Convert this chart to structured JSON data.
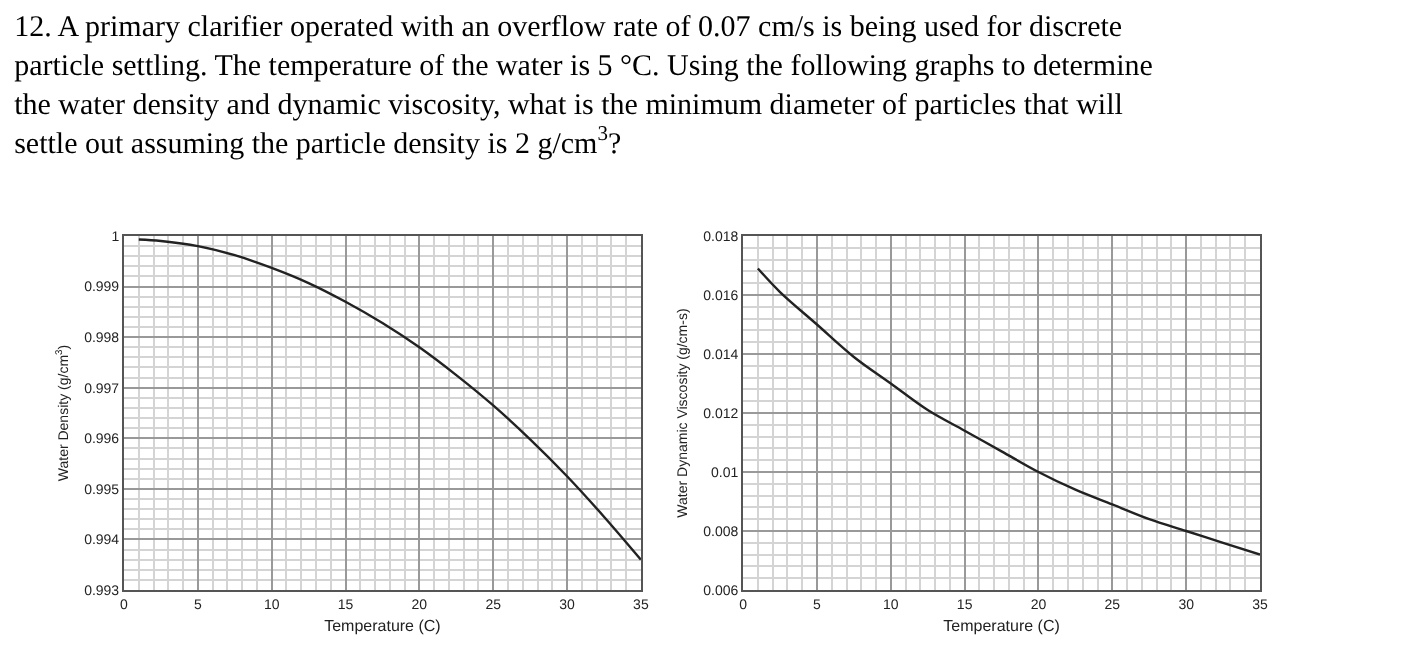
{
  "chart_data": [
    {
      "type": "line",
      "title": "12. A primary clarifier operated with an overflow rate of 0.07 cm/s is being used for discrete particle settling. The temperature of the water is 5 °C. Using the following graphs to determine the water density and dynamic viscosity, what is the minimum diameter of particles that will settle out assuming the particle density is 2 g/cm$^{3}$?",
      "xlabel": "Temperature (C)",
      "ylabel": "Water Density (g/cm$^{3}$)",
      "x": [
        1,
        2.5,
        5,
        7.5,
        10,
        12.5,
        15,
        17.5,
        20,
        22.5,
        25,
        27.5,
        30,
        32.5,
        35
      ],
      "series": [
        {
          "color": "#222222",
          "values": [
            0.99993,
            0.9999,
            0.9998,
            0.99962,
            0.99937,
            0.99907,
            0.9987,
            0.99828,
            0.9978,
            0.99725,
            0.99665,
            0.99598,
            0.99525,
            0.99445,
            0.9936
          ]
        }
      ],
      "xlim": [
        0,
        35
      ],
      "xticks": [
        0,
        5,
        10,
        15,
        20,
        25,
        30,
        35
      ],
      "ylim": [
        0.993,
        1
      ],
      "yticks": [
        0.993,
        0.994,
        0.995,
        0.996,
        0.997,
        0.998,
        0.999,
        1
      ],
      "grid": true,
      "marker": "none",
      "line_style": "solid"
    },
    {
      "type": "line",
      "xlabel": "Temperature (C)",
      "ylabel": "Water Dynamic Viscosity (g/cm-s)",
      "x": [
        1,
        2.5,
        5,
        7.5,
        10,
        12.5,
        15,
        17.5,
        20,
        22.5,
        25,
        27.5,
        30,
        32.5,
        35
      ],
      "series": [
        {
          "color": "#222222",
          "values": [
            0.0169,
            0.0161,
            0.015,
            0.0139,
            0.013,
            0.0121,
            0.0114,
            0.0107,
            0.01,
            0.0094,
            0.0089,
            0.0084,
            0.008,
            0.0076,
            0.0072
          ]
        }
      ],
      "xlim": [
        0,
        35
      ],
      "xticks": [
        0,
        5,
        10,
        15,
        20,
        25,
        30,
        35
      ],
      "ylim": [
        0.006,
        0.018
      ],
      "yticks": [
        0.006,
        0.008,
        0.01,
        0.012,
        0.014,
        0.016,
        0.018
      ],
      "grid": true,
      "marker": "none",
      "line_style": "solid"
    }
  ]
}
